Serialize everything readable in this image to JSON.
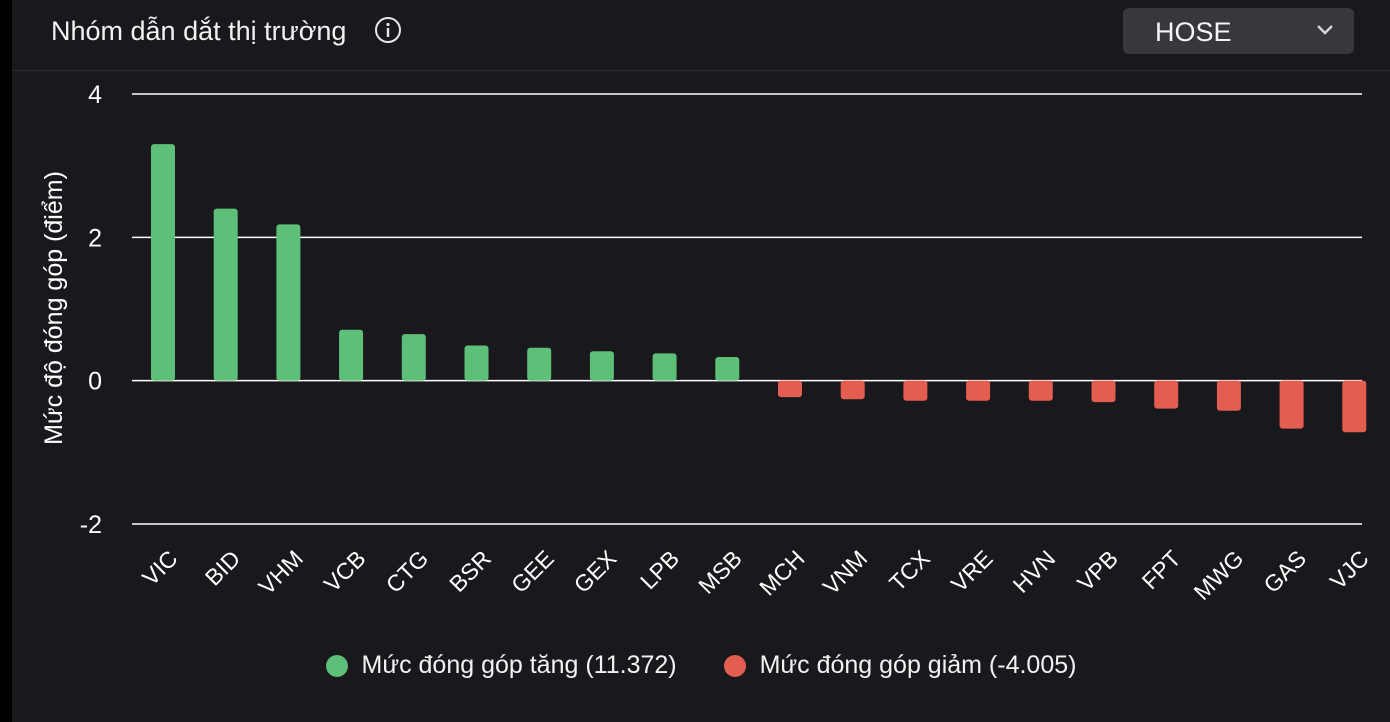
{
  "header": {
    "title": "Nhóm dẫn dắt thị trường",
    "info_icon": "info-circle-icon",
    "exchange_select": {
      "value": "HOSE",
      "icon": "chevron-down-icon"
    }
  },
  "colors": {
    "positive": "#5ebf78",
    "negative": "#e35e50",
    "background": "#19181c",
    "grid": "#ffffff",
    "text": "#ffffff"
  },
  "chart_data": {
    "type": "bar",
    "ylabel": "Mức độ đóng góp (điểm)",
    "xlabel": "",
    "ylim": [
      -2,
      4
    ],
    "yticks": [
      4,
      2,
      0,
      -2
    ],
    "grid": true,
    "legend_position": "bottom",
    "categories": [
      "VIC",
      "BID",
      "VHM",
      "VCB",
      "CTG",
      "BSR",
      "GEE",
      "GEX",
      "LPB",
      "MSB",
      "MCH",
      "VNM",
      "TCX",
      "VRE",
      "HVN",
      "VPB",
      "FPT",
      "MWG",
      "GAS",
      "VJC"
    ],
    "series": [
      {
        "name": "Mức đóng góp tăng (11.372)",
        "color": "#5ebf78",
        "values": [
          3.3,
          2.4,
          2.18,
          0.71,
          0.65,
          0.49,
          0.46,
          0.41,
          0.38,
          0.33,
          null,
          null,
          null,
          null,
          null,
          null,
          null,
          null,
          null,
          null
        ]
      },
      {
        "name": "Mức đóng góp giảm (-4.005)",
        "color": "#e35e50",
        "values": [
          null,
          null,
          null,
          null,
          null,
          null,
          null,
          null,
          null,
          null,
          -0.23,
          -0.26,
          -0.28,
          -0.28,
          -0.28,
          -0.3,
          -0.39,
          -0.42,
          -0.67,
          -0.72
        ]
      }
    ]
  }
}
